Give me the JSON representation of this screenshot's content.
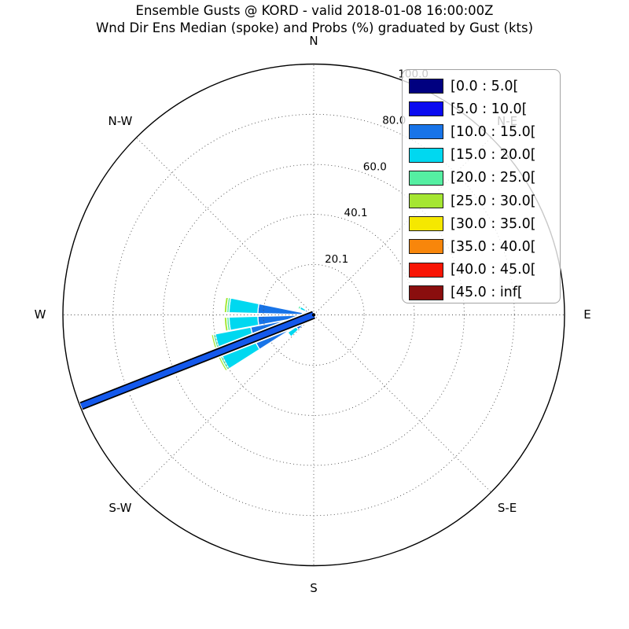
{
  "title": "Ensemble Gusts @ KORD - valid 2018-01-08 16:00:00Z",
  "subtitle": "Wnd Dir Ens Median (spoke) and Probs (%) graduated by Gust (kts)",
  "chart_data": {
    "type": "windrose-polar-bar",
    "value_units": "probability %",
    "rmax": 100.0,
    "radial_ticks": [
      20.1,
      40.1,
      60.0,
      80.0,
      100.0
    ],
    "radial_tick_labels": [
      "20.1",
      "40.1",
      "60.0",
      "80.0",
      "100.0"
    ],
    "radial_tick_angle_deg": 22.5,
    "grid": "dotted",
    "compass_labels": [
      {
        "label": "N",
        "az": 0,
        "behind_legend": false
      },
      {
        "label": "N-E",
        "az": 45,
        "behind_legend": true
      },
      {
        "label": "E",
        "az": 90,
        "behind_legend": false
      },
      {
        "label": "S-E",
        "az": 135,
        "behind_legend": false
      },
      {
        "label": "S",
        "az": 180,
        "behind_legend": false
      },
      {
        "label": "S-W",
        "az": 225,
        "behind_legend": false
      },
      {
        "label": "W",
        "az": 270,
        "behind_legend": false
      },
      {
        "label": "N-W",
        "az": 315,
        "behind_legend": false
      }
    ],
    "gust_bins": [
      {
        "label": "[0.0 : 5.0[",
        "color": "#000080"
      },
      {
        "label": "[5.0 : 10.0[",
        "color": "#0a0af0"
      },
      {
        "label": "[10.0 : 15.0[",
        "color": "#1874e8"
      },
      {
        "label": "[15.0 : 20.0[",
        "color": "#00d8f0"
      },
      {
        "label": "[20.0 : 25.0[",
        "color": "#55efa2"
      },
      {
        "label": "[25.0 : 30.0[",
        "color": "#a5e632"
      },
      {
        "label": "[30.0 : 35.0[",
        "color": "#f5e800"
      },
      {
        "label": "[35.0 : 40.0[",
        "color": "#f8860b"
      },
      {
        "label": "[40.0 : 45.0[",
        "color": "#f81505"
      },
      {
        "label": "[45.0 : inf[",
        "color": "#8a0e0e"
      }
    ],
    "wedges": [
      {
        "direction": "WNW",
        "az_start": 292.0,
        "az_end": 303.0,
        "segments": [
          {
            "bin": 1,
            "r0": 0.0,
            "r1": 1.0
          },
          {
            "bin": 2,
            "r0": 1.0,
            "r1": 3.8
          },
          {
            "bin": 3,
            "r0": 3.8,
            "r1": 6.0
          },
          {
            "bin": 4,
            "r0": 6.0,
            "r1": 6.8
          }
        ]
      },
      {
        "direction": "W-upper",
        "az_start": 271.5,
        "az_end": 281.5,
        "segments": [
          {
            "bin": 0,
            "r0": 0.0,
            "r1": 1.1
          },
          {
            "bin": 1,
            "r0": 1.1,
            "r1": 4.6
          },
          {
            "bin": 2,
            "r0": 4.6,
            "r1": 22.3
          },
          {
            "bin": 3,
            "r0": 22.3,
            "r1": 33.8
          },
          {
            "bin": 4,
            "r0": 33.8,
            "r1": 34.7
          },
          {
            "bin": 5,
            "r0": 34.7,
            "r1": 35.7
          }
        ]
      },
      {
        "direction": "W-lower",
        "az_start": 259.5,
        "az_end": 268.5,
        "segments": [
          {
            "bin": 0,
            "r0": 0.0,
            "r1": 1.1
          },
          {
            "bin": 1,
            "r0": 1.1,
            "r1": 4.6
          },
          {
            "bin": 2,
            "r0": 4.6,
            "r1": 22.3
          },
          {
            "bin": 3,
            "r0": 22.3,
            "r1": 33.8
          },
          {
            "bin": 4,
            "r0": 33.8,
            "r1": 34.7
          },
          {
            "bin": 5,
            "r0": 34.7,
            "r1": 35.7
          }
        ]
      },
      {
        "direction": "WSW",
        "az_start": 237.5,
        "az_end": 259.0,
        "segments": [
          {
            "bin": 1,
            "r0": 0.0,
            "r1": 4.6
          },
          {
            "bin": 2,
            "r0": 4.6,
            "r1": 25.6
          },
          {
            "bin": 3,
            "r0": 25.6,
            "r1": 40.0
          },
          {
            "bin": 4,
            "r0": 40.0,
            "r1": 40.8
          },
          {
            "bin": 5,
            "r0": 40.8,
            "r1": 41.6
          }
        ]
      },
      {
        "direction": "SW",
        "az_start": 226.0,
        "az_end": 236.0,
        "segments": [
          {
            "bin": 2,
            "r0": 0.0,
            "r1": 8.5
          },
          {
            "bin": 3,
            "r0": 8.5,
            "r1": 12.5
          }
        ]
      }
    ],
    "median_spoke": {
      "az": 248.6,
      "length": 99.5,
      "color": "#1459ec",
      "edge_color": "#000000",
      "halo_color": "#ffffff"
    }
  },
  "legend": {
    "entries": [
      "[0.0 : 5.0[",
      "[5.0 : 10.0[",
      "[10.0 : 15.0[",
      "[15.0 : 20.0[",
      "[20.0 : 25.0[",
      "[25.0 : 30.0[",
      "[30.0 : 35.0[",
      "[35.0 : 40.0[",
      "[40.0 : 45.0[",
      "[45.0 : inf["
    ]
  }
}
